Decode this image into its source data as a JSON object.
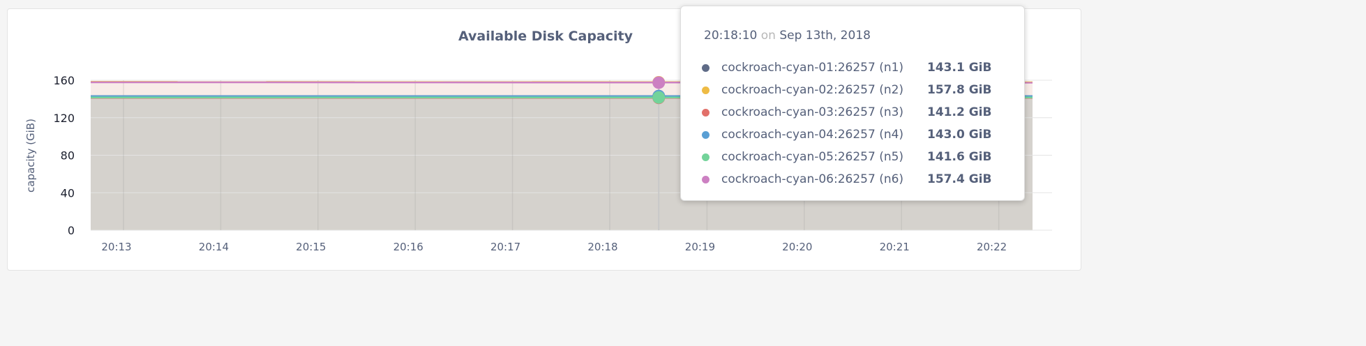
{
  "chart_data": {
    "type": "area",
    "title": "Available Disk Capacity",
    "ylabel": "capacity (GiB)",
    "xlabel": "",
    "ylim": [
      0,
      160
    ],
    "yticks": [
      "0",
      "40",
      "80",
      "120",
      "160"
    ],
    "xticks": [
      "20:13",
      "20:14",
      "20:15",
      "20:16",
      "20:17",
      "20:18",
      "20:19",
      "20:20",
      "20:21",
      "20:22"
    ],
    "grid": true,
    "series": [
      {
        "name": "cockroach-cyan-01:26257 (n1)",
        "color": "#5f6b87",
        "values": [
          143.1,
          143.1
        ]
      },
      {
        "name": "cockroach-cyan-02:26257 (n2)",
        "color": "#eebb44",
        "values": [
          158.2,
          157.8
        ]
      },
      {
        "name": "cockroach-cyan-03:26257 (n3)",
        "color": "#e2706a",
        "values": [
          141.2,
          141.2
        ]
      },
      {
        "name": "cockroach-cyan-04:26257 (n4)",
        "color": "#5a9fd4",
        "values": [
          143.0,
          143.0
        ]
      },
      {
        "name": "cockroach-cyan-05:26257 (n5)",
        "color": "#73d39a",
        "values": [
          141.6,
          141.6
        ]
      },
      {
        "name": "cockroach-cyan-06:26257 (n6)",
        "color": "#cc80c2",
        "values": [
          157.8,
          157.4
        ]
      }
    ],
    "hover": {
      "time": "20:18:10",
      "date": "Sep 13th, 2018"
    }
  },
  "tooltip": {
    "time": "20:18:10",
    "on": "on",
    "date": "Sep 13th, 2018",
    "rows": [
      {
        "name": "cockroach-cyan-01:26257 (n1)",
        "value": "143.1 GiB"
      },
      {
        "name": "cockroach-cyan-02:26257 (n2)",
        "value": "157.8 GiB"
      },
      {
        "name": "cockroach-cyan-03:26257 (n3)",
        "value": "141.2 GiB"
      },
      {
        "name": "cockroach-cyan-04:26257 (n4)",
        "value": "143.0 GiB"
      },
      {
        "name": "cockroach-cyan-05:26257 (n5)",
        "value": "141.6 GiB"
      },
      {
        "name": "cockroach-cyan-06:26257 (n6)",
        "value": "157.4 GiB"
      }
    ]
  }
}
